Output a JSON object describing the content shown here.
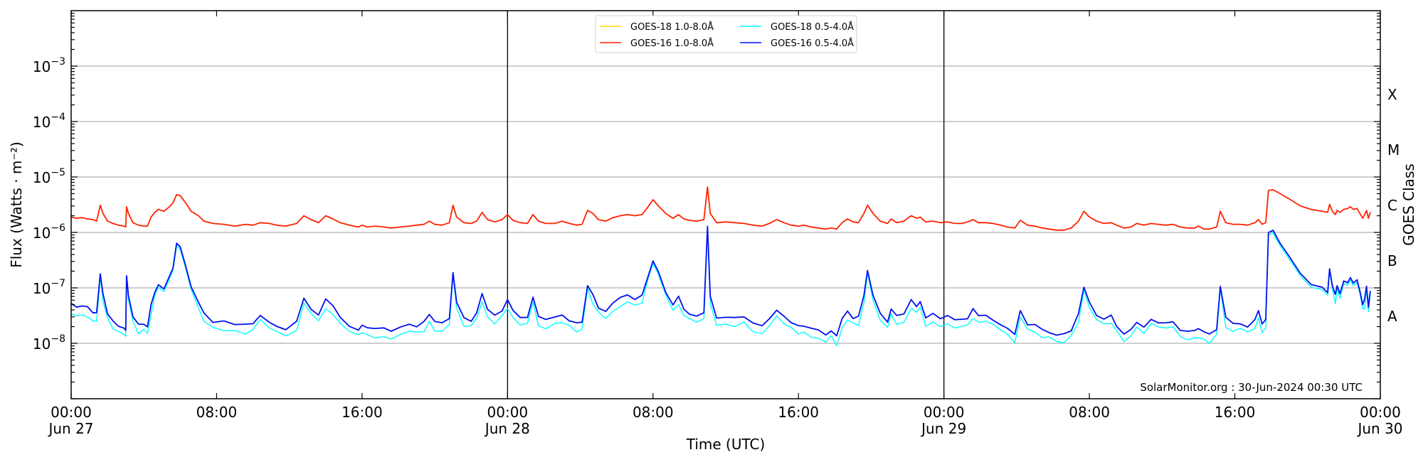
{
  "chart_data": {
    "type": "line",
    "title": "",
    "xlabel": "Time (UTC)",
    "ylabel": "Flux (Watts · m⁻²)",
    "ylabel_right": "GOES Class",
    "yscale": "log",
    "ylim": [
      1e-09,
      0.01
    ],
    "xlim_hours": [
      0,
      72
    ],
    "grid": "horizontal major",
    "legend_position": "upper center",
    "y_ticks": [
      {
        "value": 0.001,
        "label_base": "10",
        "label_exp": "−3"
      },
      {
        "value": 0.0001,
        "label_base": "10",
        "label_exp": "−4"
      },
      {
        "value": 1e-05,
        "label_base": "10",
        "label_exp": "−5"
      },
      {
        "value": 1e-06,
        "label_base": "10",
        "label_exp": "−6"
      },
      {
        "value": 1e-07,
        "label_base": "10",
        "label_exp": "−7"
      },
      {
        "value": 1e-08,
        "label_base": "10",
        "label_exp": "−8"
      }
    ],
    "goes_classes": [
      {
        "label": "X",
        "value": 0.000316
      },
      {
        "label": "M",
        "value": 3.16e-05
      },
      {
        "label": "C",
        "value": 3.16e-06
      },
      {
        "label": "B",
        "value": 3.16e-07
      },
      {
        "label": "A",
        "value": 3.16e-08
      }
    ],
    "x_ticks": [
      {
        "hour": 0,
        "time": "00:00",
        "date": "Jun 27"
      },
      {
        "hour": 8,
        "time": "08:00",
        "date": ""
      },
      {
        "hour": 16,
        "time": "16:00",
        "date": ""
      },
      {
        "hour": 24,
        "time": "00:00",
        "date": "Jun 28"
      },
      {
        "hour": 32,
        "time": "08:00",
        "date": ""
      },
      {
        "hour": 40,
        "time": "16:00",
        "date": ""
      },
      {
        "hour": 48,
        "time": "00:00",
        "date": "Jun 29"
      },
      {
        "hour": 56,
        "time": "08:00",
        "date": ""
      },
      {
        "hour": 64,
        "time": "16:00",
        "date": ""
      },
      {
        "hour": 72,
        "time": "00:00",
        "date": "Jun 30"
      }
    ],
    "day_boundaries_hours": [
      24,
      48
    ],
    "credit": "SolarMonitor.org : 30-Jun-2024 00:30 UTC",
    "series": [
      {
        "name": "GOES-18 1.0-8.0Å",
        "color": "#ffd700",
        "points": []
      },
      {
        "name": "GOES-16 1.0-8.0Å",
        "color": "#ff2200",
        "points": [
          [
            0,
            1.9e-06
          ],
          [
            0.3,
            1.8e-06
          ],
          [
            0.6,
            1.85e-06
          ],
          [
            0.9,
            1.75e-06
          ],
          [
            1.2,
            1.7e-06
          ],
          [
            1.4,
            1.6e-06
          ],
          [
            1.5,
            2.2e-06
          ],
          [
            1.6,
            3.1e-06
          ],
          [
            1.75,
            2.2e-06
          ],
          [
            2.0,
            1.6e-06
          ],
          [
            2.3,
            1.45e-06
          ],
          [
            2.6,
            1.35e-06
          ],
          [
            2.9,
            1.3e-06
          ],
          [
            3.0,
            1.25e-06
          ],
          [
            3.05,
            2.9e-06
          ],
          [
            3.15,
            2.2e-06
          ],
          [
            3.4,
            1.5e-06
          ],
          [
            3.7,
            1.35e-06
          ],
          [
            4.0,
            1.3e-06
          ],
          [
            4.2,
            1.3e-06
          ],
          [
            4.4,
            1.9e-06
          ],
          [
            4.6,
            2.3e-06
          ],
          [
            4.8,
            2.6e-06
          ],
          [
            5.1,
            2.4e-06
          ],
          [
            5.4,
            2.9e-06
          ],
          [
            5.6,
            3.4e-06
          ],
          [
            5.8,
            4.8e-06
          ],
          [
            6.0,
            4.6e-06
          ],
          [
            6.3,
            3.4e-06
          ],
          [
            6.6,
            2.4e-06
          ],
          [
            7.0,
            2e-06
          ],
          [
            7.3,
            1.6e-06
          ],
          [
            7.8,
            1.45e-06
          ],
          [
            8.4,
            1.4e-06
          ],
          [
            9.0,
            1.3e-06
          ],
          [
            9.6,
            1.4e-06
          ],
          [
            10.0,
            1.35e-06
          ],
          [
            10.4,
            1.5e-06
          ],
          [
            10.9,
            1.45e-06
          ],
          [
            11.3,
            1.35e-06
          ],
          [
            11.8,
            1.3e-06
          ],
          [
            12.4,
            1.45e-06
          ],
          [
            12.8,
            2e-06
          ],
          [
            13.2,
            1.7e-06
          ],
          [
            13.6,
            1.5e-06
          ],
          [
            14.0,
            2e-06
          ],
          [
            14.4,
            1.75e-06
          ],
          [
            14.8,
            1.5e-06
          ],
          [
            15.3,
            1.35e-06
          ],
          [
            15.8,
            1.25e-06
          ],
          [
            16.0,
            1.35e-06
          ],
          [
            16.3,
            1.25e-06
          ],
          [
            16.7,
            1.3e-06
          ],
          [
            17.2,
            1.25e-06
          ],
          [
            17.6,
            1.2e-06
          ],
          [
            18.1,
            1.25e-06
          ],
          [
            18.6,
            1.3e-06
          ],
          [
            19.0,
            1.35e-06
          ],
          [
            19.4,
            1.4e-06
          ],
          [
            19.7,
            1.6e-06
          ],
          [
            20.0,
            1.4e-06
          ],
          [
            20.4,
            1.35e-06
          ],
          [
            20.8,
            1.5e-06
          ],
          [
            21.0,
            3.1e-06
          ],
          [
            21.2,
            1.9e-06
          ],
          [
            21.6,
            1.5e-06
          ],
          [
            22.0,
            1.45e-06
          ],
          [
            22.3,
            1.6e-06
          ],
          [
            22.6,
            2.3e-06
          ],
          [
            22.9,
            1.7e-06
          ],
          [
            23.3,
            1.55e-06
          ],
          [
            23.7,
            1.7e-06
          ],
          [
            24.0,
            2.1e-06
          ],
          [
            24.3,
            1.65e-06
          ],
          [
            24.7,
            1.5e-06
          ],
          [
            25.1,
            1.45e-06
          ],
          [
            25.4,
            2.1e-06
          ],
          [
            25.7,
            1.6e-06
          ],
          [
            26.1,
            1.45e-06
          ],
          [
            26.6,
            1.45e-06
          ],
          [
            27.0,
            1.6e-06
          ],
          [
            27.4,
            1.45e-06
          ],
          [
            27.8,
            1.35e-06
          ],
          [
            28.1,
            1.4e-06
          ],
          [
            28.4,
            2.5e-06
          ],
          [
            28.7,
            2.2e-06
          ],
          [
            29.0,
            1.7e-06
          ],
          [
            29.4,
            1.6e-06
          ],
          [
            29.8,
            1.85e-06
          ],
          [
            30.2,
            2e-06
          ],
          [
            30.6,
            2.1e-06
          ],
          [
            31.0,
            2e-06
          ],
          [
            31.4,
            2.1e-06
          ],
          [
            31.7,
            2.8e-06
          ],
          [
            32.0,
            3.9e-06
          ],
          [
            32.3,
            3e-06
          ],
          [
            32.7,
            2.2e-06
          ],
          [
            33.1,
            1.8e-06
          ],
          [
            33.4,
            2.1e-06
          ],
          [
            33.7,
            1.75e-06
          ],
          [
            34.0,
            1.65e-06
          ],
          [
            34.4,
            1.6e-06
          ],
          [
            34.8,
            1.7e-06
          ],
          [
            35.0,
            6.6e-06
          ],
          [
            35.15,
            2.2e-06
          ],
          [
            35.5,
            1.5e-06
          ]
        ]
      },
      {
        "name": "GOES-18 0.5-4.0Å",
        "color": "#00ffff",
        "points": []
      },
      {
        "name": "GOES-16 0.5-4.0Å",
        "color": "#0011ee",
        "points": []
      }
    ]
  }
}
